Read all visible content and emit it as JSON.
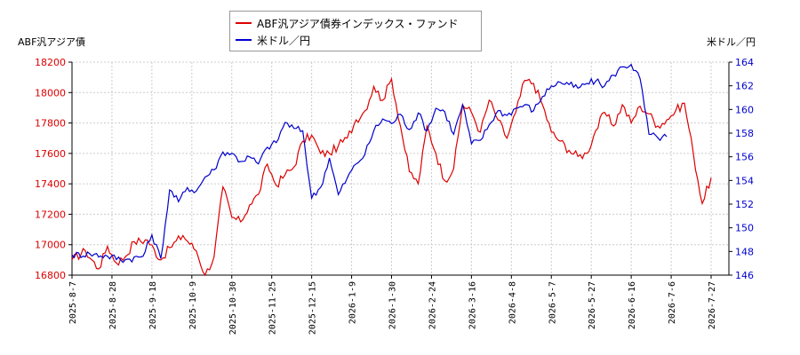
{
  "chart_data": {
    "type": "line",
    "left_axis_title": "ABF汎アジア債",
    "right_axis_title": "米ドル／円",
    "legend": [
      {
        "label": "ABF汎アジア債券インデックス・ファンド",
        "color": "#dd0000"
      },
      {
        "label": "米ドル／円",
        "color": "#0000cc"
      }
    ],
    "x_tick_labels": [
      "2025-8-7",
      "2025-8-28",
      "2025-9-18",
      "2025-10-9",
      "2025-10-30",
      "2025-11-25",
      "2025-12-15",
      "2026-1-9",
      "2026-1-30",
      "2026-2-24",
      "2026-3-16",
      "2026-4-8",
      "2026-5-7",
      "2026-5-27",
      "2026-6-16",
      "2026-7-6",
      "2026-7-27"
    ],
    "y_left": {
      "min": 16800,
      "max": 18200,
      "ticks": [
        16800,
        17000,
        17200,
        17400,
        17600,
        17800,
        18000,
        18200
      ],
      "color": "#dd0000"
    },
    "y_right": {
      "min": 146,
      "max": 164,
      "ticks": [
        146,
        148,
        150,
        152,
        154,
        156,
        158,
        160,
        162,
        164
      ],
      "color": "#0000cc"
    },
    "grid": true,
    "series": [
      {
        "name": "ABF汎アジア債券インデックス・ファンド",
        "axis": "left",
        "color": "#dd0000",
        "anchors": [
          [
            0,
            16900
          ],
          [
            3,
            16960
          ],
          [
            6,
            16840
          ],
          [
            8,
            16990
          ],
          [
            10,
            16880
          ],
          [
            12,
            16920
          ],
          [
            14,
            17020
          ],
          [
            17,
            17030
          ],
          [
            20,
            16900
          ],
          [
            22,
            16980
          ],
          [
            25,
            17060
          ],
          [
            28,
            16960
          ],
          [
            30,
            16800
          ],
          [
            32,
            16920
          ],
          [
            34,
            17380
          ],
          [
            36,
            17180
          ],
          [
            38,
            17150
          ],
          [
            40,
            17260
          ],
          [
            42,
            17330
          ],
          [
            44,
            17530
          ],
          [
            46,
            17390
          ],
          [
            48,
            17460
          ],
          [
            50,
            17510
          ],
          [
            52,
            17680
          ],
          [
            54,
            17720
          ],
          [
            56,
            17600
          ],
          [
            58,
            17600
          ],
          [
            60,
            17650
          ],
          [
            62,
            17700
          ],
          [
            64,
            17820
          ],
          [
            66,
            17880
          ],
          [
            68,
            18040
          ],
          [
            70,
            17950
          ],
          [
            72,
            18090
          ],
          [
            74,
            17780
          ],
          [
            76,
            17480
          ],
          [
            78,
            17400
          ],
          [
            80,
            17780
          ],
          [
            82,
            17600
          ],
          [
            84,
            17420
          ],
          [
            86,
            17500
          ],
          [
            88,
            17920
          ],
          [
            90,
            17870
          ],
          [
            92,
            17740
          ],
          [
            94,
            17950
          ],
          [
            96,
            17820
          ],
          [
            98,
            17700
          ],
          [
            100,
            17870
          ],
          [
            102,
            18080
          ],
          [
            104,
            18060
          ],
          [
            106,
            17920
          ],
          [
            108,
            17740
          ],
          [
            110,
            17680
          ],
          [
            112,
            17620
          ],
          [
            114,
            17580
          ],
          [
            116,
            17600
          ],
          [
            118,
            17750
          ],
          [
            120,
            17870
          ],
          [
            122,
            17780
          ],
          [
            124,
            17920
          ],
          [
            126,
            17800
          ],
          [
            128,
            17910
          ],
          [
            130,
            17860
          ],
          [
            132,
            17780
          ],
          [
            134,
            17820
          ],
          [
            136,
            17880
          ],
          [
            138,
            17930
          ],
          [
            140,
            17600
          ],
          [
            142,
            17270
          ],
          [
            144,
            17440
          ]
        ]
      },
      {
        "name": "米ドル／円",
        "axis": "right",
        "color": "#0000cc",
        "anchors": [
          [
            0,
            147.7
          ],
          [
            4,
            147.8
          ],
          [
            8,
            147.6
          ],
          [
            12,
            147.3
          ],
          [
            16,
            147.6
          ],
          [
            18,
            149.4
          ],
          [
            20,
            147.4
          ],
          [
            22,
            153.2
          ],
          [
            24,
            152.2
          ],
          [
            26,
            153.4
          ],
          [
            28,
            153.1
          ],
          [
            30,
            154.3
          ],
          [
            32,
            154.9
          ],
          [
            34,
            156.4
          ],
          [
            36,
            156.3
          ],
          [
            38,
            155.6
          ],
          [
            40,
            156.0
          ],
          [
            42,
            155.4
          ],
          [
            44,
            156.8
          ],
          [
            46,
            157.2
          ],
          [
            48,
            158.9
          ],
          [
            50,
            158.4
          ],
          [
            52,
            158.2
          ],
          [
            54,
            152.5
          ],
          [
            56,
            153.4
          ],
          [
            58,
            155.9
          ],
          [
            60,
            152.8
          ],
          [
            62,
            154.2
          ],
          [
            64,
            155.4
          ],
          [
            66,
            156.2
          ],
          [
            68,
            158.2
          ],
          [
            70,
            159.2
          ],
          [
            72,
            158.8
          ],
          [
            74,
            159.6
          ],
          [
            76,
            158.3
          ],
          [
            78,
            159.7
          ],
          [
            80,
            158.2
          ],
          [
            82,
            160.1
          ],
          [
            84,
            159.8
          ],
          [
            86,
            157.9
          ],
          [
            88,
            160.4
          ],
          [
            90,
            157.1
          ],
          [
            92,
            157.4
          ],
          [
            94,
            158.7
          ],
          [
            96,
            159.9
          ],
          [
            98,
            159.5
          ],
          [
            100,
            160.1
          ],
          [
            102,
            160.4
          ],
          [
            104,
            159.9
          ],
          [
            106,
            161.1
          ],
          [
            108,
            162.0
          ],
          [
            110,
            162.3
          ],
          [
            112,
            162.1
          ],
          [
            114,
            161.8
          ],
          [
            116,
            162.2
          ],
          [
            118,
            162.4
          ],
          [
            120,
            162.0
          ],
          [
            122,
            162.9
          ],
          [
            124,
            163.6
          ],
          [
            126,
            163.8
          ],
          [
            128,
            162.6
          ],
          [
            130,
            157.9
          ],
          [
            132,
            157.6
          ],
          [
            134,
            157.7
          ]
        ]
      }
    ]
  }
}
